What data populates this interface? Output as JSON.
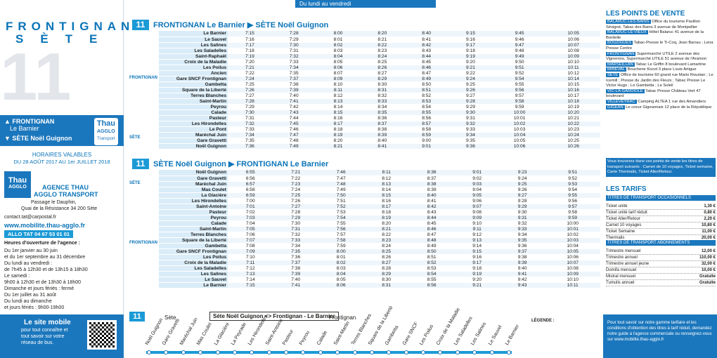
{
  "day_label": "Du lundi au vendredi",
  "left": {
    "town1": "FRONTIGNAN",
    "town2": "SÈTE",
    "line": "11",
    "dir_up": "▲ FRONTIGNAN",
    "dir_up_sub": "Le Barnier",
    "dir_down": "▼ SÈTE Noël Guignon",
    "logo1": "Thau",
    "logo2": "AGGLO",
    "logo3": "Transport",
    "validity_title": "HORAIRES VALABLES",
    "validity": "DU 28 AOÛT 2017 AU 1er JUILLET 2018",
    "agency_title": "AGENCE THAU",
    "agency_title2": "AGGLO TRANSPORT",
    "address1": "Passage le Dauphin,",
    "address2": "Quai de la Résistance 34 200 Sète",
    "email": "contact.tat@carpostal.fr",
    "website": "www.mobilite.thau-agglo.fr",
    "phone": "ALLO TAT 04 67 53 01 01",
    "hours_title": "Heures d'ouverture de l'agence :",
    "hours": [
      "Du 1er janvier au 30 juin",
      "et du 1er septembre au 31 décembre",
      "Du lundi au vendredi :",
      "de 7h45 à 12h30 et de 13h15 à 18h30",
      "Le samedi :",
      "9h00 à 12h30 et de 13h30 à 18h00",
      "Dimanche et jours fériés : fermé",
      "Du 1er juillet au 31 août",
      "Du lundi au dimanche",
      "et jours fériés : 9h00-19h00"
    ],
    "mobile_title": "Le site mobile",
    "mobile_text": [
      "pour tout connaître et",
      "tout savoir sur votre",
      "réseau de bus."
    ]
  },
  "timetables": [
    {
      "line": "11",
      "title": "FRONTIGNAN Le Barnier ▶ SÈTE Noël Guignon",
      "groups": [
        {
          "zone": "FRONTIGNAN",
          "stops": [
            {
              "name": "Le Barnier",
              "times": [
                "7:15",
                "7:28",
                "8:00",
                "8:20",
                "8:40",
                "9:15",
                "9:45",
                "10:05"
              ]
            },
            {
              "name": "Le Sauvel",
              "times": [
                "7:16",
                "7:29",
                "8:01",
                "8:21",
                "8:41",
                "9:16",
                "9:46",
                "10:06"
              ]
            },
            {
              "name": "Les Salines",
              "times": [
                "7:17",
                "7:30",
                "8:02",
                "8:22",
                "8:42",
                "9:17",
                "9:47",
                "10:07"
              ]
            },
            {
              "name": "Les Saladelles",
              "times": [
                "7:18",
                "7:31",
                "8:03",
                "8:23",
                "8:43",
                "9:18",
                "9:48",
                "10:08"
              ]
            },
            {
              "name": "Saint-Raphaël",
              "times": [
                "7:19",
                "7:32",
                "8:04",
                "8:24",
                "8:44",
                "9:19",
                "9:49",
                "10:09"
              ]
            },
            {
              "name": "Croix de la Maladie",
              "times": [
                "7:20",
                "7:33",
                "8:05",
                "8:25",
                "8:45",
                "9:20",
                "9:50",
                "10:10"
              ]
            },
            {
              "name": "Les Poilus",
              "times": [
                "7:21",
                "7:34",
                "8:06",
                "8:26",
                "8:46",
                "9:21",
                "9:51",
                "10:11"
              ]
            },
            {
              "name": "Ancien",
              "times": [
                "7:22",
                "7:35",
                "8:07",
                "8:27",
                "8:47",
                "9:22",
                "9:52",
                "10:12"
              ]
            },
            {
              "name": "Gare SNCF Frontignan",
              "times": [
                "7:24",
                "7:37",
                "8:09",
                "8:29",
                "8:49",
                "9:24",
                "9:54",
                "10:14"
              ]
            },
            {
              "name": "Gambetta",
              "times": [
                "7:25",
                "7:38",
                "8:10",
                "8:30",
                "8:50",
                "9:25",
                "9:55",
                "10:15"
              ]
            },
            {
              "name": "Square de la Liberté",
              "times": [
                "7:26",
                "7:39",
                "8:11",
                "8:31",
                "8:51",
                "9:26",
                "9:56",
                "10:16"
              ]
            },
            {
              "name": "Terres Blanches",
              "times": [
                "7:27",
                "7:40",
                "8:12",
                "8:32",
                "8:52",
                "9:27",
                "9:57",
                "10:17"
              ]
            },
            {
              "name": "Saint-Martin",
              "times": [
                "7:28",
                "7:41",
                "8:13",
                "8:33",
                "8:53",
                "9:28",
                "9:58",
                "10:18"
              ]
            },
            {
              "name": "Peyrou",
              "times": [
                "7:29",
                "7:42",
                "8:14",
                "8:34",
                "8:54",
                "9:29",
                "9:59",
                "10:19"
              ]
            },
            {
              "name": "Calade",
              "times": [
                "7:30",
                "7:43",
                "8:15",
                "8:35",
                "8:55",
                "9:30",
                "10:00",
                "10:20"
              ]
            },
            {
              "name": "Pasteur",
              "times": [
                "7:31",
                "7:44",
                "8:16",
                "8:36",
                "8:56",
                "9:31",
                "10:01",
                "10:21"
              ]
            },
            {
              "name": "Les Hirondelles",
              "times": [
                "7:32",
                "7:45",
                "8:17",
                "8:37",
                "8:57",
                "9:32",
                "10:02",
                "10:22"
              ]
            }
          ]
        },
        {
          "zone": "SÈTE",
          "stops": [
            {
              "name": "Le Pont",
              "times": [
                "7:33",
                "7:46",
                "8:18",
                "8:38",
                "8:58",
                "9:33",
                "10:03",
                "10:23"
              ]
            },
            {
              "name": "Maréchal Juin",
              "times": [
                "7:34",
                "7:47",
                "8:19",
                "8:39",
                "8:59",
                "9:34",
                "10:04",
                "10:24"
              ]
            },
            {
              "name": "Gare Gravetti",
              "times": [
                "7:35",
                "7:48",
                "8:20",
                "8:40",
                "9:00",
                "9:35",
                "10:05",
                "10:25"
              ]
            },
            {
              "name": "Noël Guignon",
              "times": [
                "7:36",
                "7:49",
                "8:21",
                "8:41",
                "9:01",
                "9:36",
                "10:06",
                "10:26"
              ]
            }
          ]
        }
      ]
    },
    {
      "line": "11",
      "title": "SÈTE Noël Guignon ▶ FRONTIGNAN Le Barnier",
      "groups": [
        {
          "zone": "SÈTE",
          "stops": [
            {
              "name": "Noël Guignon",
              "times": [
                "6:55",
                "7:21",
                "7:46",
                "8:11",
                "8:36",
                "9:01",
                "9:23",
                "9:51"
              ]
            },
            {
              "name": "Gare Gravetti",
              "times": [
                "6:56",
                "7:22",
                "7:47",
                "8:12",
                "8:37",
                "9:02",
                "9:24",
                "9:52"
              ]
            },
            {
              "name": "Maréchal Juin",
              "times": [
                "6:57",
                "7:23",
                "7:48",
                "8:13",
                "8:38",
                "9:03",
                "9:25",
                "9:53"
              ]
            },
            {
              "name": "Mas Coulet",
              "times": [
                "6:58",
                "7:24",
                "7:49",
                "8:14",
                "8:39",
                "9:04",
                "9:26",
                "9:54"
              ]
            },
            {
              "name": "La Glacière",
              "times": [
                "6:59",
                "7:25",
                "7:50",
                "8:15",
                "8:40",
                "9:05",
                "9:27",
                "9:55"
              ]
            }
          ]
        },
        {
          "zone": "FRONTIGNAN",
          "stops": [
            {
              "name": "Les Hirondelles",
              "times": [
                "7:00",
                "7:26",
                "7:51",
                "8:16",
                "8:41",
                "9:06",
                "9:28",
                "9:56"
              ]
            },
            {
              "name": "Saint-Antoine",
              "times": [
                "7:01",
                "7:27",
                "7:52",
                "8:17",
                "8:42",
                "9:07",
                "9:29",
                "9:57"
              ]
            },
            {
              "name": "Pasteur",
              "times": [
                "7:02",
                "7:28",
                "7:53",
                "8:18",
                "8:43",
                "9:08",
                "9:30",
                "9:58"
              ]
            },
            {
              "name": "Peyrou",
              "times": [
                "7:03",
                "7:29",
                "7:54",
                "8:19",
                "8:44",
                "9:09",
                "9:31",
                "9:59"
              ]
            },
            {
              "name": "Calade",
              "times": [
                "7:04",
                "7:30",
                "7:55",
                "8:20",
                "8:45",
                "9:10",
                "9:32",
                "10:00"
              ]
            },
            {
              "name": "Saint-Martin",
              "times": [
                "7:05",
                "7:31",
                "7:56",
                "8:21",
                "8:46",
                "9:11",
                "9:33",
                "10:01"
              ]
            },
            {
              "name": "Terres Blanches",
              "times": [
                "7:06",
                "7:32",
                "7:57",
                "8:22",
                "8:47",
                "9:12",
                "9:34",
                "10:02"
              ]
            },
            {
              "name": "Square de la Liberté",
              "times": [
                "7:07",
                "7:33",
                "7:58",
                "8:23",
                "8:48",
                "9:13",
                "9:35",
                "10:03"
              ]
            },
            {
              "name": "Gambetta",
              "times": [
                "7:08",
                "7:34",
                "7:59",
                "8:24",
                "8:49",
                "9:14",
                "9:36",
                "10:04"
              ]
            },
            {
              "name": "Gare SNCF Frontignan",
              "times": [
                "7:09",
                "7:35",
                "8:00",
                "8:25",
                "8:50",
                "9:15",
                "9:37",
                "10:05"
              ]
            },
            {
              "name": "Les Poilus",
              "times": [
                "7:10",
                "7:36",
                "8:01",
                "8:26",
                "8:51",
                "9:16",
                "9:38",
                "10:06"
              ]
            },
            {
              "name": "Croix de la Maladie",
              "times": [
                "7:11",
                "7:37",
                "8:02",
                "8:27",
                "8:52",
                "9:17",
                "9:39",
                "10:07"
              ]
            },
            {
              "name": "Les Saladelles",
              "times": [
                "7:12",
                "7:38",
                "8:03",
                "8:28",
                "8:53",
                "9:18",
                "9:40",
                "10:08"
              ]
            },
            {
              "name": "Les Salines",
              "times": [
                "7:13",
                "7:39",
                "8:04",
                "8:29",
                "8:54",
                "9:19",
                "9:41",
                "10:09"
              ]
            },
            {
              "name": "Le Sauvel",
              "times": [
                "7:14",
                "7:40",
                "8:05",
                "8:30",
                "8:55",
                "9:20",
                "9:42",
                "10:10"
              ]
            },
            {
              "name": "Le Barnier",
              "times": [
                "7:15",
                "7:41",
                "8:06",
                "8:31",
                "8:56",
                "9:21",
                "9:43",
                "10:11"
              ]
            }
          ]
        }
      ]
    }
  ],
  "map": {
    "line": "11",
    "left_town": "Sète",
    "title": "Sète Noël Guignon <> Frontignan - Le Barnier",
    "right_town": "Frontignan",
    "stops": [
      "Noël Guignon",
      "Gare Gravetti",
      "Maréchal Juin",
      "Mas Coulet",
      "La Glacière",
      "La Peyrade",
      "Les Hirondelles",
      "Saint-Antoine",
      "Pasteur",
      "Peyrou",
      "Calade",
      "Saint-Martin",
      "Terres Blanches",
      "Square de la Liberté",
      "Gambetta",
      "Gare SNCF",
      "Les Poilus",
      "Croix de la Maladie",
      "Les Saladelles",
      "Les Salines",
      "Le Sauvel",
      "Le Barnier"
    ],
    "legend": "LÉGENDE :"
  },
  "right": {
    "sales_title": "LES POINTS DE VENTE",
    "sales": [
      {
        "town": "BALARUC-LES-BAINS",
        "text": "Office du tourisme Pavillon Sévigné, Tabac des Bains 3 avenue de Montpellier"
      },
      {
        "town": "BALARUC-LE-VIEUX",
        "text": "Hôtel Balaruc 41 avenue de la Bordelle"
      },
      {
        "town": "BOUZIGUES",
        "text": "Tabac-Presse le Ti-Coq, Jean Barrau ; Lena Presse Centre"
      },
      {
        "town": "FRONTIGNAN",
        "text": "Supermarché UTILE 2 avenue des Vignerons, Supermarché UTILE 51 avenue de l'Aramon"
      },
      {
        "town": "MARSEILLAN",
        "text": "Tabac Le Griffin 8 boulevard Lamartine"
      },
      {
        "town": "MIREVAL",
        "text": "Boucherie Kocot 3 place Louis Artigue"
      },
      {
        "town": "SÈTE",
        "text": "Office de tourisme 60 grand rue Mario Roustan ; Le Icemill ; Presse du Jardin des Fleurs ; Tabac Presse Le Victor Hugo ; Le Gambetta ; Le Soleil"
      },
      {
        "town": "VIC-LA-GARDIOLE",
        "text": "Tabac Presse Château Vert 47 boulevard"
      },
      {
        "town": "VILLEVEYRAC",
        "text": "Camping ALTEA 1 rue des Amandiers"
      },
      {
        "town": "GIGEAN",
        "text": "Le coeur Gigeannais 12 place de la République"
      }
    ],
    "info": "Vous trouverez dans ces points de vente les titres de transport suivants : Carnet de 10 voyages, Ticket semaine, Carte Thermalis, Ticket Aller/Retour.",
    "tariffs_title": "LES TARIFS",
    "occasional_title": "TITRES DE TRANSPORT OCCASIONNELS",
    "tariffs": [
      {
        "name": "Ticket unité",
        "price": "1,30 €"
      },
      {
        "name": "Ticket unité tarif réduit",
        "price": "0,80 €"
      },
      {
        "name": "Ticket Aller/Retour",
        "price": "2,20 €"
      },
      {
        "name": "Carnet 10 voyages",
        "price": "10,80 €"
      },
      {
        "name": "Ticket Semaine",
        "price": "11,00 €"
      },
      {
        "name": "Thermalis",
        "price": "20,00 €"
      }
    ],
    "subscription_title": "TITRES DE TRANSPORT ABONNEMENTS",
    "subscriptions": [
      {
        "name": "Trimestre mensuel",
        "price": "12,00 €"
      },
      {
        "name": "Trimestre annuel",
        "price": "110,00 €"
      },
      {
        "name": "Trimestre annuel jeune",
        "price": "32,00 €"
      },
      {
        "name": "Domifa mensuel",
        "price": "10,00 €"
      },
      {
        "name": "Mistral mensuel",
        "price": "Gratuite"
      },
      {
        "name": "Tumulis annuel",
        "price": "Gratuite"
      }
    ],
    "footer": "Pour tout savoir sur notre gamme tarifaire et les conditions d'obtention des titres à tarif réduit, demandez notre guide à l'agence commerciale ou renseignez-vous sur www.mobilite.thau-agglo.fr"
  }
}
